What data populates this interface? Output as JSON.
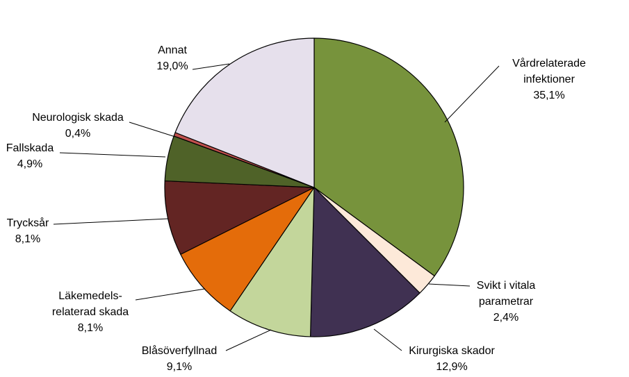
{
  "chart_data": {
    "type": "pie",
    "title": "",
    "slices": [
      {
        "label": "Vårdrelaterade infektioner",
        "lines": [
          "Vårdrelaterade",
          "infektioner"
        ],
        "pct_text": "35,1%",
        "value": 35.1,
        "color": "#77933c"
      },
      {
        "label": "Svikt i vitala parametrar",
        "lines": [
          "Svikt i vitala",
          "parametrar"
        ],
        "pct_text": "2,4%",
        "value": 2.4,
        "color": "#fde9d9"
      },
      {
        "label": "Kirurgiska skador",
        "lines": [
          "Kirurgiska skador"
        ],
        "pct_text": "12,9%",
        "value": 12.9,
        "color": "#403152"
      },
      {
        "label": "Blåsöverfyllnad",
        "lines": [
          "Blåsöverfyllnad"
        ],
        "pct_text": "9,1%",
        "value": 9.1,
        "color": "#c3d69b"
      },
      {
        "label": "Läkemedelsrelaterad skada",
        "lines": [
          "Läkemedels-",
          "relaterad skada"
        ],
        "pct_text": "8,1%",
        "value": 8.1,
        "color": "#e46c0a"
      },
      {
        "label": "Trycksår",
        "lines": [
          "Trycksår"
        ],
        "pct_text": "8,1%",
        "value": 8.1,
        "color": "#632523"
      },
      {
        "label": "Fallskada",
        "lines": [
          "Fallskada"
        ],
        "pct_text": "4,9%",
        "value": 4.9,
        "color": "#4f6228"
      },
      {
        "label": "Neurologisk skada",
        "lines": [
          "Neurologisk skada"
        ],
        "pct_text": "0,4%",
        "value": 0.4,
        "color": "#c0504d"
      },
      {
        "label": "Annat",
        "lines": [
          "Annat"
        ],
        "pct_text": "19,0%",
        "value": 19.0,
        "color": "#e6e0ec"
      }
    ],
    "legend": "none"
  }
}
